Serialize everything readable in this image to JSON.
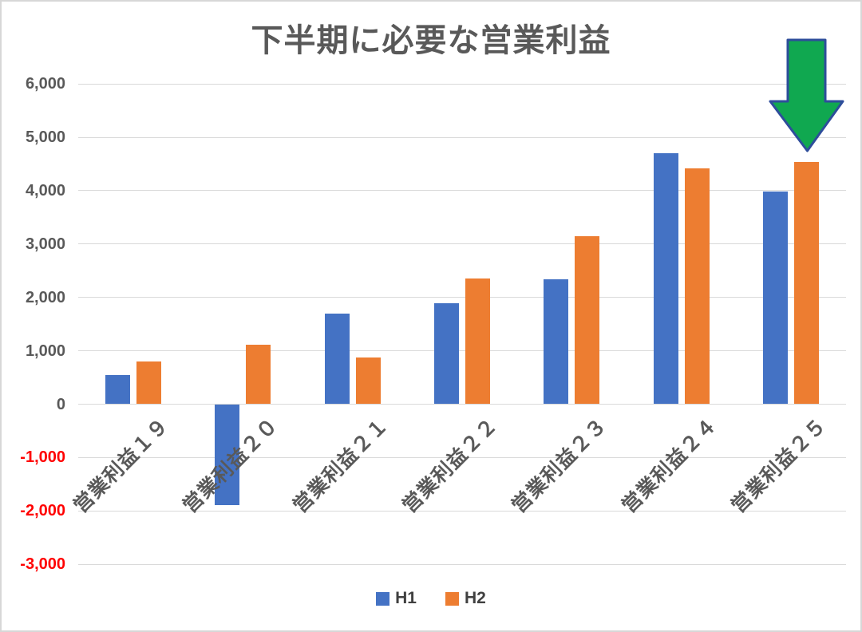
{
  "chart_data": {
    "type": "bar",
    "title": "下半期に必要な営業利益",
    "categories": [
      "営業利益１９",
      "営業利益２０",
      "営業利益２１",
      "営業利益２２",
      "営業利益２３",
      "営業利益２４",
      "営業利益２５"
    ],
    "series": [
      {
        "name": "H1",
        "color": "#4472C4",
        "values": [
          550,
          -1890,
          1700,
          1890,
          2340,
          4700,
          3990
        ]
      },
      {
        "name": "H2",
        "color": "#ED7D31",
        "values": [
          800,
          1110,
          880,
          2350,
          3140,
          4420,
          4530
        ]
      }
    ],
    "xlabel": "",
    "ylabel": "",
    "ylim": [
      -3000,
      6000
    ],
    "ytick_step": 1000,
    "ytick_labels": [
      "-3,000",
      "-2,000",
      "-1,000",
      "0",
      "1,000",
      "2,000",
      "3,000",
      "4,000",
      "5,000",
      "6,000"
    ],
    "positive_tick_color": "#595959",
    "negative_tick_color": "#FF0000",
    "grid": true,
    "gridline_color": "#D9D9D9",
    "legend_position": "bottom",
    "annotation": {
      "type": "down-arrow",
      "target_category": "営業利益２５",
      "target_series": "H2",
      "fill_color": "#10A850",
      "border_color": "#2E4D9B"
    }
  }
}
